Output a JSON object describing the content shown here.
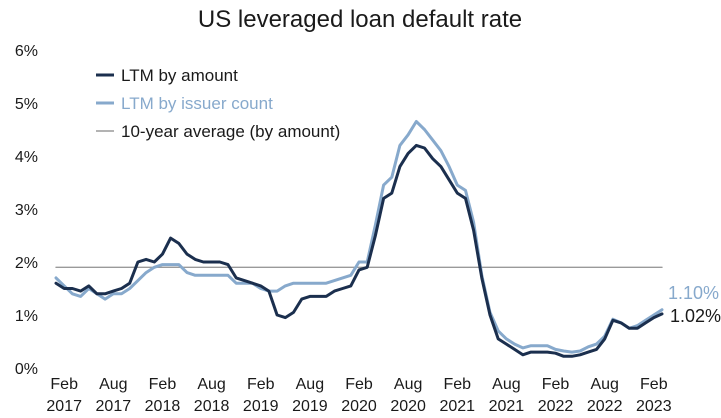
{
  "chart_data": {
    "type": "line",
    "title": "US leveraged loan default rate",
    "xlabel": "",
    "ylabel": "",
    "ylim": [
      0,
      6
    ],
    "yticks": [
      {
        "value": 0,
        "label": "0%"
      },
      {
        "value": 1,
        "label": "1%"
      },
      {
        "value": 2,
        "label": "2%"
      },
      {
        "value": 3,
        "label": "3%"
      },
      {
        "value": 4,
        "label": "4%"
      },
      {
        "value": 5,
        "label": "5%"
      },
      {
        "value": 6,
        "label": "6%"
      }
    ],
    "xlim": [
      "2017-01",
      "2023-03"
    ],
    "xticks": [
      {
        "date": "2017-02",
        "month": "Feb",
        "year": "2017"
      },
      {
        "date": "2017-08",
        "month": "Aug",
        "year": "2017"
      },
      {
        "date": "2018-02",
        "month": "Feb",
        "year": "2018"
      },
      {
        "date": "2018-08",
        "month": "Aug",
        "year": "2018"
      },
      {
        "date": "2019-02",
        "month": "Feb",
        "year": "2019"
      },
      {
        "date": "2019-08",
        "month": "Aug",
        "year": "2019"
      },
      {
        "date": "2020-02",
        "month": "Feb",
        "year": "2020"
      },
      {
        "date": "2020-08",
        "month": "Aug",
        "year": "2020"
      },
      {
        "date": "2021-02",
        "month": "Feb",
        "year": "2021"
      },
      {
        "date": "2021-08",
        "month": "Aug",
        "year": "2021"
      },
      {
        "date": "2022-02",
        "month": "Feb",
        "year": "2022"
      },
      {
        "date": "2022-08",
        "month": "Aug",
        "year": "2022"
      },
      {
        "date": "2023-02",
        "month": "Feb",
        "year": "2023"
      }
    ],
    "grid": false,
    "legend": "top-left",
    "series": [
      {
        "name": "LTM by amount",
        "color": "#1b2f4e",
        "points": [
          [
            "2017-01",
            1.6
          ],
          [
            "2017-02",
            1.5
          ],
          [
            "2017-03",
            1.5
          ],
          [
            "2017-04",
            1.45
          ],
          [
            "2017-05",
            1.55
          ],
          [
            "2017-06",
            1.4
          ],
          [
            "2017-07",
            1.4
          ],
          [
            "2017-08",
            1.45
          ],
          [
            "2017-09",
            1.5
          ],
          [
            "2017-10",
            1.6
          ],
          [
            "2017-11",
            2.0
          ],
          [
            "2017-12",
            2.05
          ],
          [
            "2018-01",
            2.0
          ],
          [
            "2018-02",
            2.15
          ],
          [
            "2018-03",
            2.45
          ],
          [
            "2018-04",
            2.35
          ],
          [
            "2018-05",
            2.15
          ],
          [
            "2018-06",
            2.05
          ],
          [
            "2018-07",
            2.0
          ],
          [
            "2018-08",
            2.0
          ],
          [
            "2018-09",
            2.0
          ],
          [
            "2018-10",
            1.95
          ],
          [
            "2018-11",
            1.7
          ],
          [
            "2018-12",
            1.65
          ],
          [
            "2019-01",
            1.6
          ],
          [
            "2019-02",
            1.55
          ],
          [
            "2019-03",
            1.45
          ],
          [
            "2019-04",
            1.0
          ],
          [
            "2019-05",
            0.95
          ],
          [
            "2019-06",
            1.05
          ],
          [
            "2019-07",
            1.3
          ],
          [
            "2019-08",
            1.35
          ],
          [
            "2019-09",
            1.35
          ],
          [
            "2019-10",
            1.35
          ],
          [
            "2019-11",
            1.45
          ],
          [
            "2019-12",
            1.5
          ],
          [
            "2020-01",
            1.55
          ],
          [
            "2020-02",
            1.85
          ],
          [
            "2020-03",
            1.9
          ],
          [
            "2020-04",
            2.5
          ],
          [
            "2020-05",
            3.2
          ],
          [
            "2020-06",
            3.3
          ],
          [
            "2020-07",
            3.8
          ],
          [
            "2020-08",
            4.05
          ],
          [
            "2020-09",
            4.2
          ],
          [
            "2020-10",
            4.15
          ],
          [
            "2020-11",
            3.95
          ],
          [
            "2020-12",
            3.8
          ],
          [
            "2021-01",
            3.55
          ],
          [
            "2021-02",
            3.3
          ],
          [
            "2021-03",
            3.2
          ],
          [
            "2021-04",
            2.6
          ],
          [
            "2021-05",
            1.7
          ],
          [
            "2021-06",
            1.0
          ],
          [
            "2021-07",
            0.55
          ],
          [
            "2021-08",
            0.45
          ],
          [
            "2021-09",
            0.35
          ],
          [
            "2021-10",
            0.25
          ],
          [
            "2021-11",
            0.3
          ],
          [
            "2021-12",
            0.3
          ],
          [
            "2022-01",
            0.3
          ],
          [
            "2022-02",
            0.28
          ],
          [
            "2022-03",
            0.22
          ],
          [
            "2022-04",
            0.22
          ],
          [
            "2022-05",
            0.25
          ],
          [
            "2022-06",
            0.3
          ],
          [
            "2022-07",
            0.35
          ],
          [
            "2022-08",
            0.55
          ],
          [
            "2022-09",
            0.9
          ],
          [
            "2022-10",
            0.85
          ],
          [
            "2022-11",
            0.75
          ],
          [
            "2022-12",
            0.75
          ],
          [
            "2023-01",
            0.85
          ],
          [
            "2023-02",
            0.95
          ],
          [
            "2023-03",
            1.02
          ]
        ],
        "end_label": "1.02%"
      },
      {
        "name": "LTM by issuer count",
        "color": "#87a9cc",
        "points": [
          [
            "2017-01",
            1.7
          ],
          [
            "2017-02",
            1.55
          ],
          [
            "2017-03",
            1.4
          ],
          [
            "2017-04",
            1.35
          ],
          [
            "2017-05",
            1.5
          ],
          [
            "2017-06",
            1.4
          ],
          [
            "2017-07",
            1.3
          ],
          [
            "2017-08",
            1.4
          ],
          [
            "2017-09",
            1.4
          ],
          [
            "2017-10",
            1.5
          ],
          [
            "2017-11",
            1.65
          ],
          [
            "2017-12",
            1.8
          ],
          [
            "2018-01",
            1.9
          ],
          [
            "2018-02",
            1.95
          ],
          [
            "2018-03",
            1.95
          ],
          [
            "2018-04",
            1.95
          ],
          [
            "2018-05",
            1.8
          ],
          [
            "2018-06",
            1.75
          ],
          [
            "2018-07",
            1.75
          ],
          [
            "2018-08",
            1.75
          ],
          [
            "2018-09",
            1.75
          ],
          [
            "2018-10",
            1.75
          ],
          [
            "2018-11",
            1.6
          ],
          [
            "2018-12",
            1.6
          ],
          [
            "2019-01",
            1.6
          ],
          [
            "2019-02",
            1.5
          ],
          [
            "2019-03",
            1.45
          ],
          [
            "2019-04",
            1.45
          ],
          [
            "2019-05",
            1.55
          ],
          [
            "2019-06",
            1.6
          ],
          [
            "2019-07",
            1.6
          ],
          [
            "2019-08",
            1.6
          ],
          [
            "2019-09",
            1.6
          ],
          [
            "2019-10",
            1.6
          ],
          [
            "2019-11",
            1.65
          ],
          [
            "2019-12",
            1.7
          ],
          [
            "2020-01",
            1.75
          ],
          [
            "2020-02",
            2.0
          ],
          [
            "2020-03",
            2.0
          ],
          [
            "2020-04",
            2.7
          ],
          [
            "2020-05",
            3.45
          ],
          [
            "2020-06",
            3.6
          ],
          [
            "2020-07",
            4.2
          ],
          [
            "2020-08",
            4.4
          ],
          [
            "2020-09",
            4.65
          ],
          [
            "2020-10",
            4.5
          ],
          [
            "2020-11",
            4.3
          ],
          [
            "2020-12",
            4.1
          ],
          [
            "2021-01",
            3.8
          ],
          [
            "2021-02",
            3.45
          ],
          [
            "2021-03",
            3.35
          ],
          [
            "2021-04",
            2.75
          ],
          [
            "2021-05",
            1.75
          ],
          [
            "2021-06",
            1.05
          ],
          [
            "2021-07",
            0.7
          ],
          [
            "2021-08",
            0.55
          ],
          [
            "2021-09",
            0.45
          ],
          [
            "2021-10",
            0.38
          ],
          [
            "2021-11",
            0.42
          ],
          [
            "2021-12",
            0.42
          ],
          [
            "2022-01",
            0.42
          ],
          [
            "2022-02",
            0.35
          ],
          [
            "2022-03",
            0.32
          ],
          [
            "2022-04",
            0.3
          ],
          [
            "2022-05",
            0.32
          ],
          [
            "2022-06",
            0.4
          ],
          [
            "2022-07",
            0.45
          ],
          [
            "2022-08",
            0.6
          ],
          [
            "2022-09",
            0.92
          ],
          [
            "2022-10",
            0.85
          ],
          [
            "2022-11",
            0.75
          ],
          [
            "2022-12",
            0.8
          ],
          [
            "2023-01",
            0.9
          ],
          [
            "2023-02",
            1.0
          ],
          [
            "2023-03",
            1.1
          ]
        ],
        "end_label": "1.10%"
      },
      {
        "name": "10-year average (by amount)",
        "color": "#9a9a9a",
        "points": [
          [
            "2017-01",
            1.9
          ],
          [
            "2023-03",
            1.9
          ]
        ]
      }
    ]
  }
}
